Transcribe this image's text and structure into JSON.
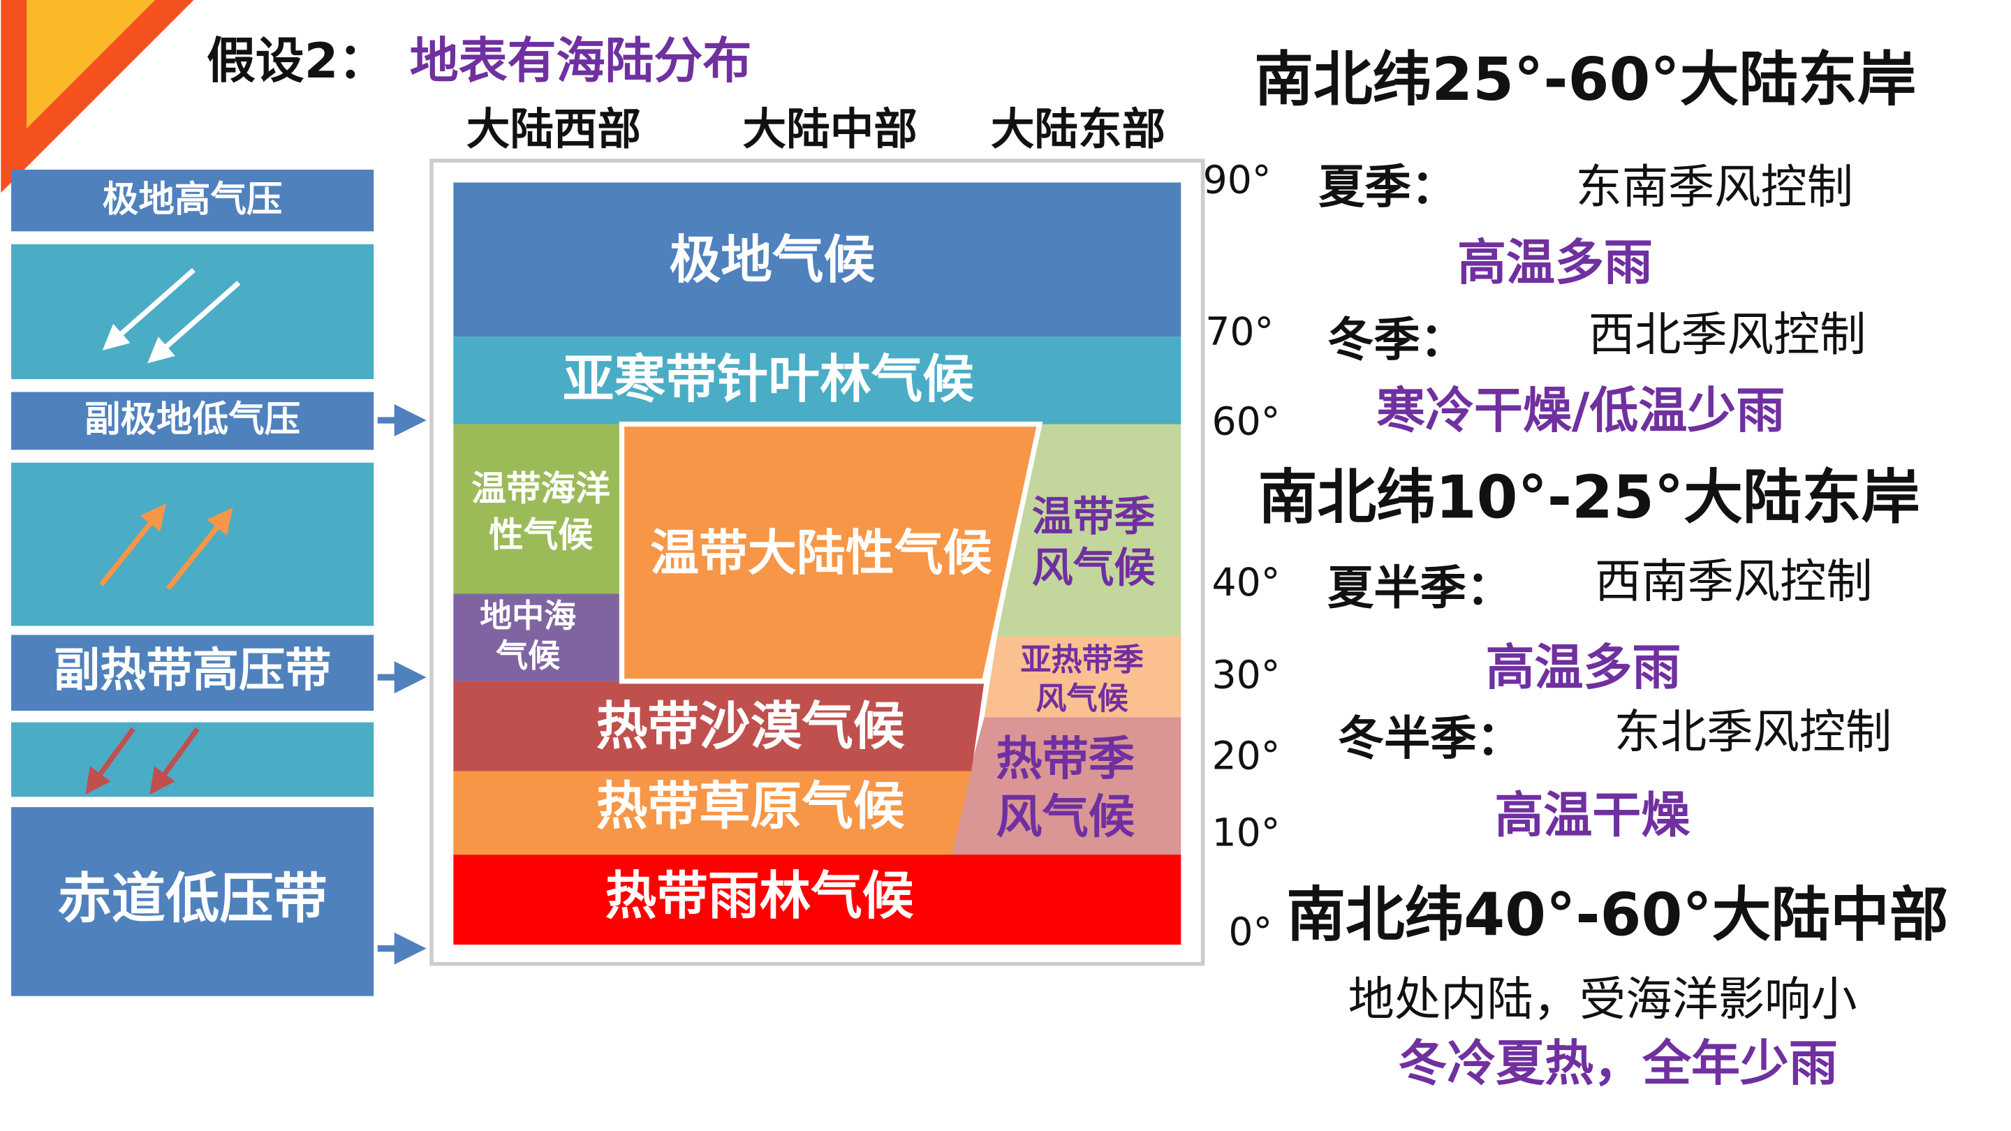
{
  "title": {
    "prefix": "假设2：",
    "topic": "地表有海陆分布"
  },
  "columns": [
    "大陆西部",
    "大陆中部",
    "大陆东部"
  ],
  "pressure_belts": [
    "极地高气压",
    "副极地低气压",
    "副热带高压带",
    "赤道低压带"
  ],
  "climates": {
    "polar": "极地气候",
    "subarctic": "亚寒带针叶林气候",
    "temperate_maritime": [
      "温带海洋",
      "性气候"
    ],
    "mediterranean": [
      "地中海",
      "气候"
    ],
    "temperate_continental": "温带大陆性气候",
    "temperate_monsoon": [
      "温带季",
      "风气候"
    ],
    "subtropical_monsoon": [
      "亚热带季",
      "风气候"
    ],
    "tropical_monsoon": [
      "热带季",
      "风气候"
    ],
    "tropical_desert": "热带沙漠气候",
    "tropical_savanna": "热带草原气候",
    "tropical_rainforest": "热带雨林气候"
  },
  "latitudes": [
    "90°",
    "70°",
    "60°",
    "40°",
    "30°",
    "20°",
    "10°",
    "0°"
  ],
  "regions": [
    {
      "heading": "南北纬25°-60°大陆东岸",
      "seasons": [
        {
          "season": "夏季：",
          "wind": "东南季风控制",
          "weather": "高温多雨"
        },
        {
          "season": "冬季：",
          "wind": "西北季风控制",
          "weather": "寒冷干燥/低温少雨"
        }
      ]
    },
    {
      "heading": "南北纬10°-25°大陆东岸",
      "seasons": [
        {
          "season": "夏半季：",
          "wind": "西南季风控制",
          "weather": "高温多雨"
        },
        {
          "season": "冬半季：",
          "wind": "东北季风控制",
          "weather": "高温干燥"
        }
      ]
    },
    {
      "heading": "南北纬40°-60°大陆中部",
      "description": "地处内陆，受海洋影响小",
      "weather": "冬冷夏热，全年少雨"
    }
  ]
}
